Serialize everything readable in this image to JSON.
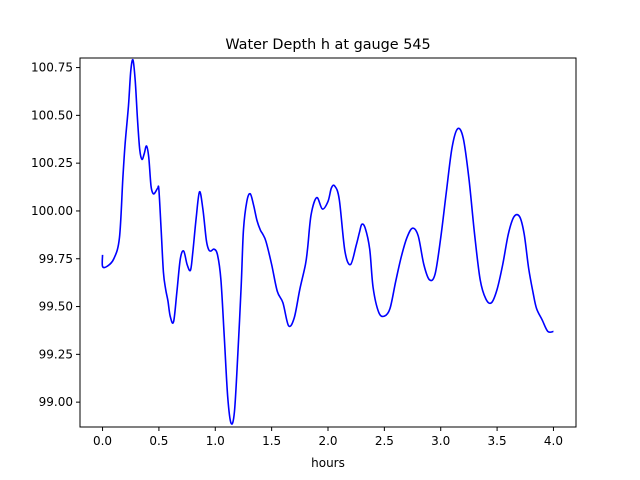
{
  "chart_data": {
    "type": "line",
    "title": "Water Depth h at gauge 545",
    "xlabel": "hours",
    "ylabel": "",
    "xlim": [
      -0.2,
      4.2
    ],
    "ylim": [
      98.87,
      100.8
    ],
    "xticks": [
      0.0,
      0.5,
      1.0,
      1.5,
      2.0,
      2.5,
      3.0,
      3.5,
      4.0
    ],
    "xtick_labels": [
      "0.0",
      "0.5",
      "1.0",
      "1.5",
      "2.0",
      "2.5",
      "3.0",
      "3.5",
      "4.0"
    ],
    "yticks": [
      99.0,
      99.25,
      99.5,
      99.75,
      100.0,
      100.25,
      100.5,
      100.75
    ],
    "ytick_labels": [
      "99.00",
      "99.25",
      "99.50",
      "99.75",
      "100.00",
      "100.25",
      "100.50",
      "100.75"
    ],
    "grid": false,
    "series": [
      {
        "color": "#0000ff",
        "x": [
          0.0,
          0.0,
          0.04,
          0.1,
          0.15,
          0.18,
          0.2,
          0.23,
          0.25,
          0.27,
          0.29,
          0.31,
          0.33,
          0.35,
          0.37,
          0.39,
          0.41,
          0.43,
          0.45,
          0.47,
          0.49,
          0.5,
          0.52,
          0.54,
          0.56,
          0.58,
          0.6,
          0.63,
          0.66,
          0.69,
          0.72,
          0.75,
          0.78,
          0.8,
          0.83,
          0.86,
          0.89,
          0.92,
          0.94,
          0.96,
          0.99,
          1.02,
          1.05,
          1.08,
          1.11,
          1.14,
          1.17,
          1.2,
          1.23,
          1.25,
          1.28,
          1.31,
          1.34,
          1.37,
          1.4,
          1.42,
          1.45,
          1.5,
          1.55,
          1.6,
          1.65,
          1.7,
          1.75,
          1.8,
          1.82,
          1.85,
          1.9,
          1.95,
          2.0,
          2.03,
          2.06,
          2.1,
          2.15,
          2.2,
          2.25,
          2.28,
          2.3,
          2.33,
          2.37,
          2.4,
          2.45,
          2.5,
          2.55,
          2.6,
          2.65,
          2.7,
          2.75,
          2.8,
          2.85,
          2.9,
          2.95,
          3.0,
          3.05,
          3.1,
          3.15,
          3.2,
          3.25,
          3.3,
          3.35,
          3.4,
          3.45,
          3.5,
          3.55,
          3.6,
          3.65,
          3.7,
          3.74,
          3.78,
          3.82,
          3.85,
          3.9,
          3.95,
          4.0
        ],
        "y": [
          99.77,
          99.71,
          99.71,
          99.75,
          99.86,
          100.17,
          100.35,
          100.55,
          100.73,
          100.79,
          100.68,
          100.48,
          100.32,
          100.27,
          100.3,
          100.34,
          100.28,
          100.13,
          100.09,
          100.1,
          100.12,
          100.11,
          99.9,
          99.68,
          99.59,
          99.53,
          99.45,
          99.42,
          99.58,
          99.75,
          99.79,
          99.72,
          99.69,
          99.78,
          99.96,
          100.1,
          100.01,
          99.85,
          99.8,
          99.79,
          99.8,
          99.77,
          99.64,
          99.34,
          99.03,
          98.89,
          98.95,
          99.25,
          99.61,
          99.9,
          100.05,
          100.09,
          100.03,
          99.95,
          99.9,
          99.88,
          99.84,
          99.72,
          99.58,
          99.52,
          99.4,
          99.44,
          99.59,
          99.72,
          99.81,
          99.98,
          100.07,
          100.01,
          100.05,
          100.12,
          100.13,
          100.06,
          99.79,
          99.72,
          99.82,
          99.89,
          99.93,
          99.91,
          99.8,
          99.6,
          99.47,
          99.45,
          99.49,
          99.63,
          99.76,
          99.86,
          99.91,
          99.87,
          99.72,
          99.64,
          99.67,
          99.86,
          100.1,
          100.33,
          100.43,
          100.38,
          100.17,
          99.88,
          99.64,
          99.54,
          99.52,
          99.59,
          99.72,
          99.88,
          99.97,
          99.97,
          99.88,
          99.7,
          99.57,
          99.49,
          99.43,
          99.37,
          99.37
        ]
      }
    ]
  }
}
